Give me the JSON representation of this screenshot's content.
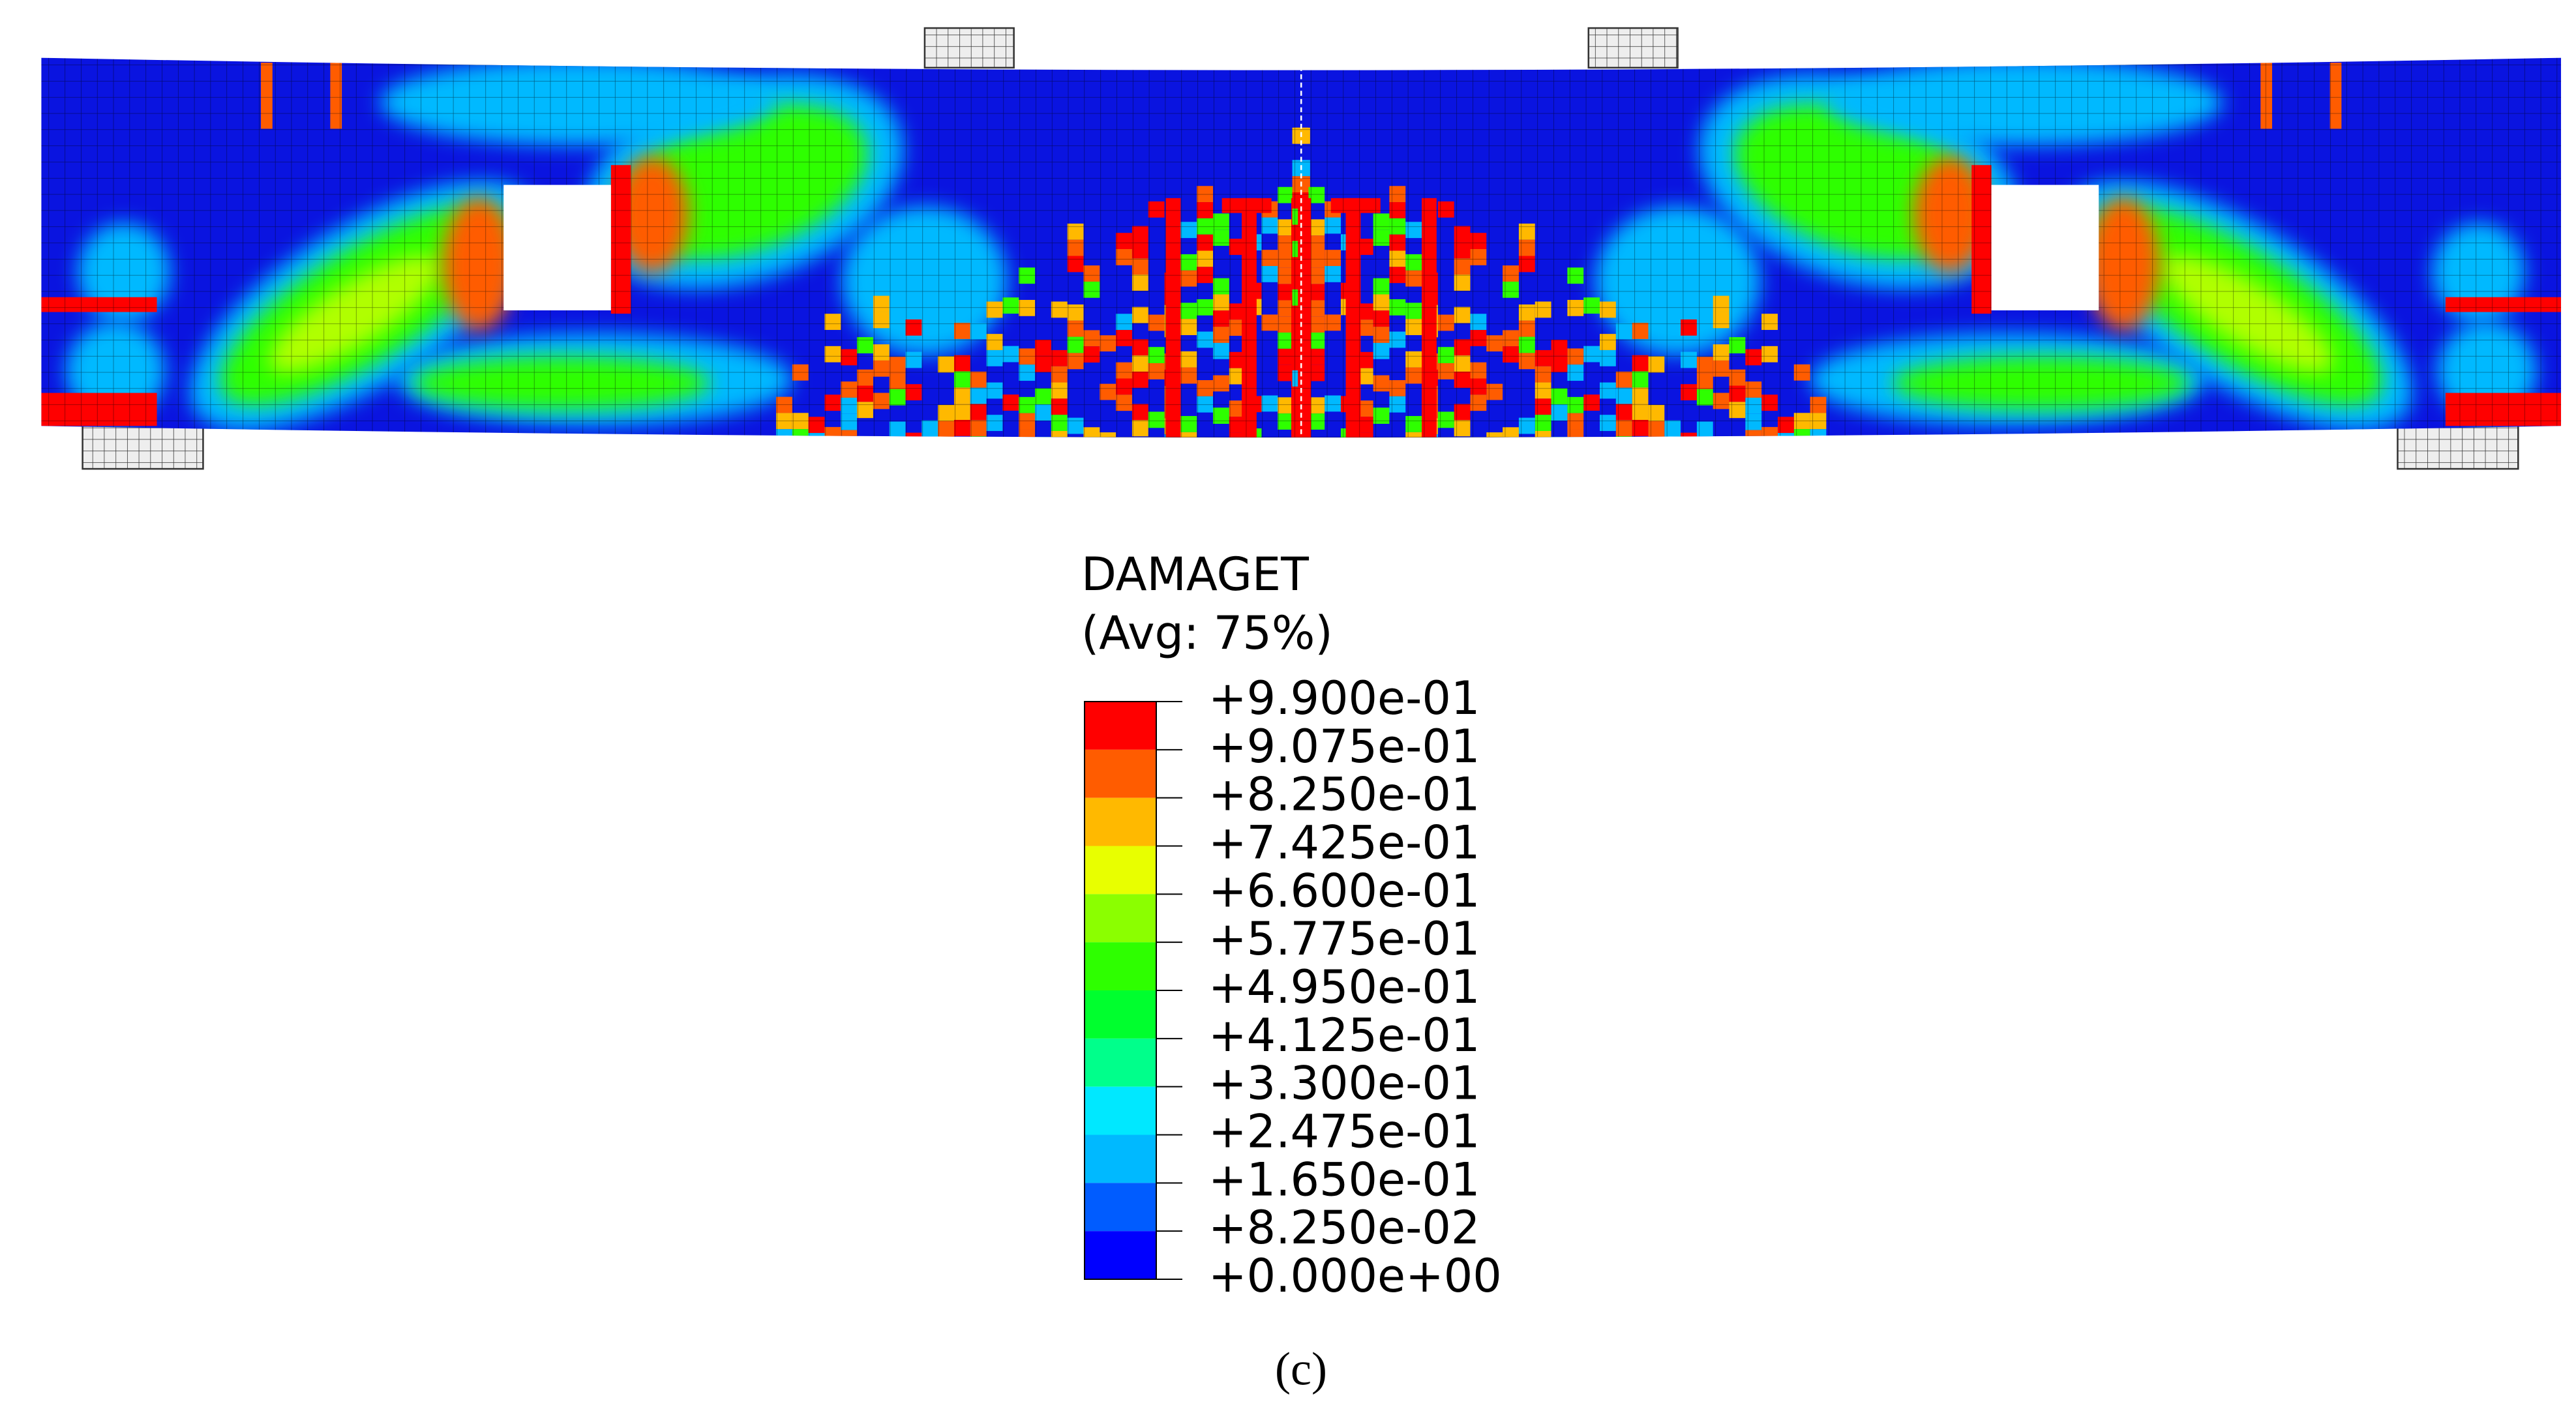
{
  "figure": {
    "legend": {
      "title": "DAMAGET",
      "subtitle": "(Avg: 75%)",
      "labels": [
        "+9.900e-01",
        "+9.075e-01",
        "+8.250e-01",
        "+7.425e-01",
        "+6.600e-01",
        "+5.775e-01",
        "+4.950e-01",
        "+4.125e-01",
        "+3.300e-01",
        "+2.475e-01",
        "+1.650e-01",
        "+8.250e-02",
        "+0.000e+00"
      ],
      "colors": [
        "#ff0000",
        "#ff5c00",
        "#ffb900",
        "#e8ff00",
        "#8bff00",
        "#2eff00",
        "#00ff2e",
        "#00ff8b",
        "#00e8ff",
        "#00b9ff",
        "#005cff",
        "#0000ff"
      ]
    },
    "caption": "(c)"
  }
}
